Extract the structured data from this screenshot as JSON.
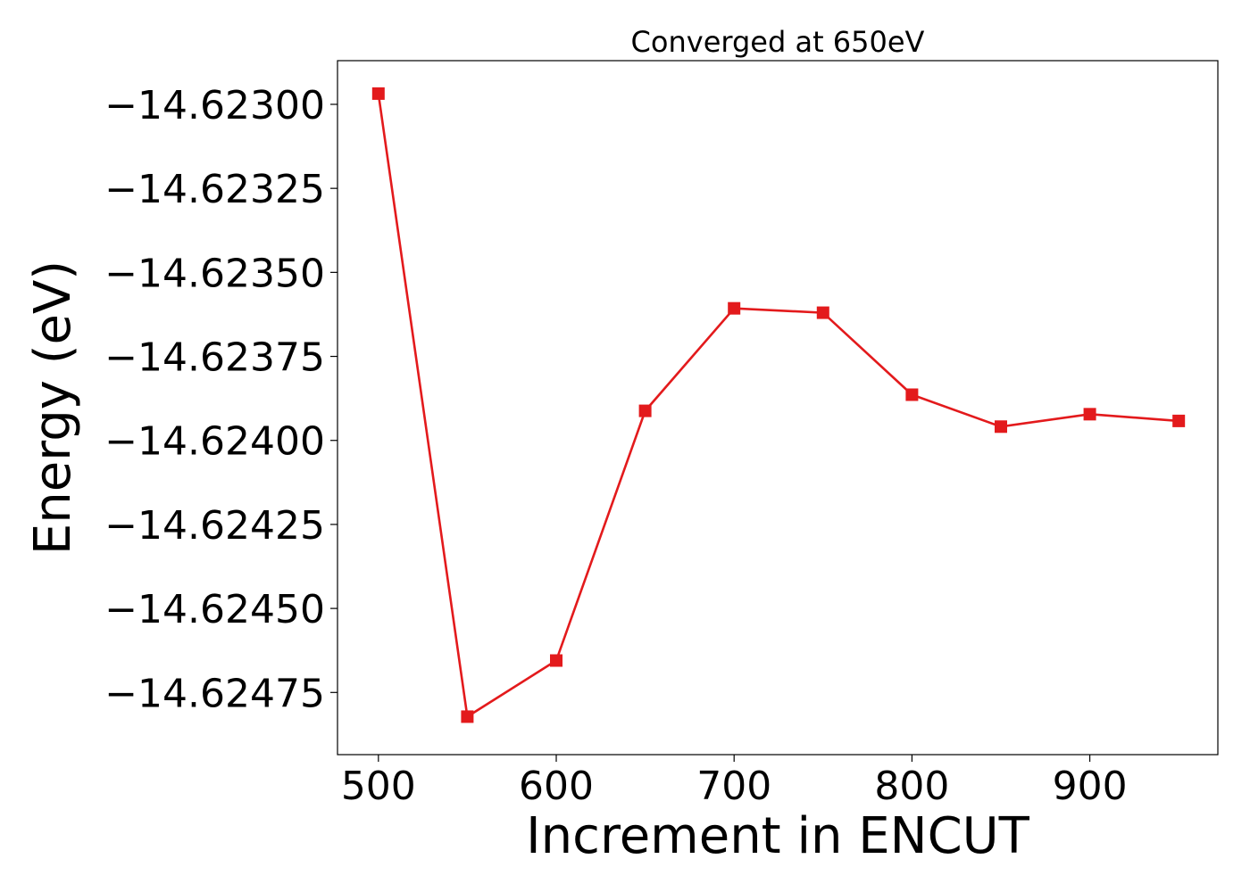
{
  "chart_data": {
    "type": "line",
    "title": "Converged at 650eV",
    "xlabel": "Increment in ENCUT",
    "ylabel": "Energy (eV)",
    "xlim": [
      477,
      972
    ],
    "ylim": [
      -14.624935,
      -14.62287
    ],
    "x_ticks": [
      500,
      600,
      700,
      800,
      900
    ],
    "x_tick_labels": [
      "500",
      "600",
      "700",
      "800",
      "900"
    ],
    "y_ticks": [
      -14.623,
      -14.62325,
      -14.6235,
      -14.62375,
      -14.624,
      -14.62425,
      -14.6245,
      -14.62475
    ],
    "y_tick_labels": [
      "−14.62300",
      "−14.62325",
      "−14.62350",
      "−14.62375",
      "−14.62400",
      "−14.62425",
      "−14.62450",
      "−14.62475"
    ],
    "grid": false,
    "legend": "none",
    "series": [
      {
        "color": "#e31a1c",
        "marker": "square",
        "x": [
          500,
          550,
          600,
          650,
          700,
          750,
          800,
          850,
          900,
          950
        ],
        "y": [
          -14.622968,
          -14.624822,
          -14.624655,
          -14.623912,
          -14.623607,
          -14.62362,
          -14.623864,
          -14.623959,
          -14.623922,
          -14.623942
        ]
      }
    ]
  }
}
